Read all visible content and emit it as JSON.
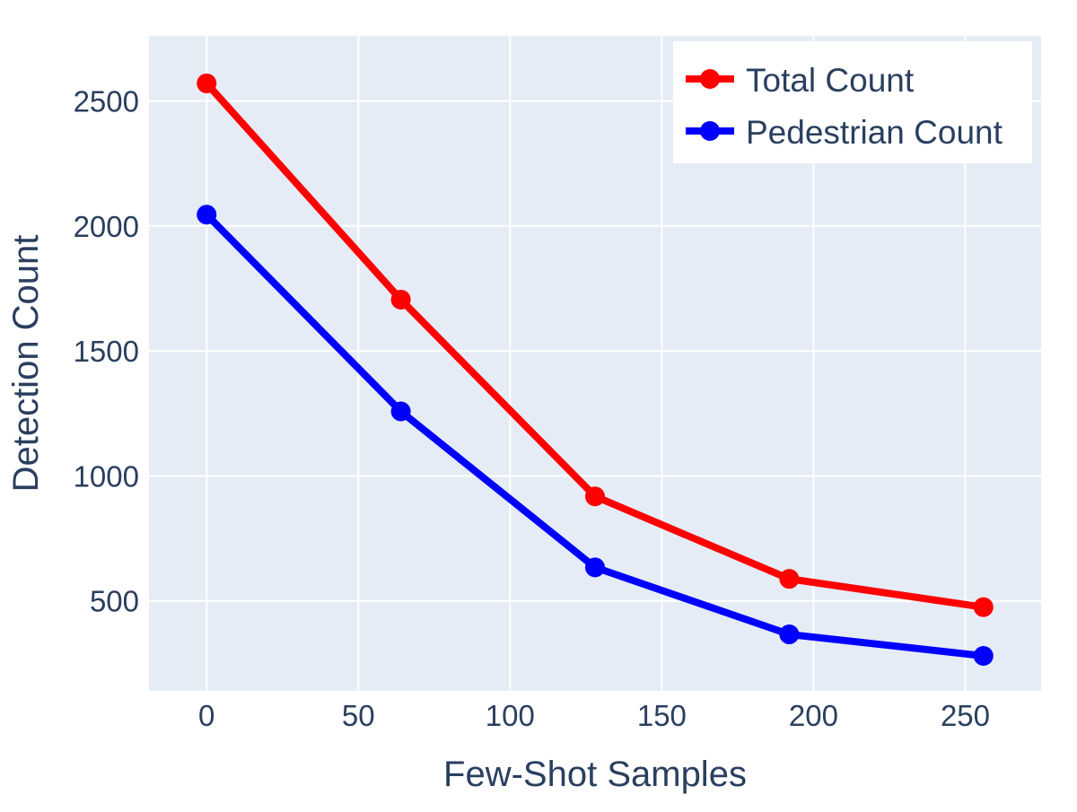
{
  "chart_data": {
    "type": "line",
    "title": "",
    "xlabel": "Few-Shot Samples",
    "ylabel": "Detection Count",
    "x": [
      0,
      64,
      128,
      192,
      256
    ],
    "xlim": [
      -19,
      275
    ],
    "ylim": [
      140,
      2760
    ],
    "xticks": [
      0,
      50,
      100,
      150,
      200,
      250
    ],
    "yticks": [
      500,
      1000,
      1500,
      2000,
      2500
    ],
    "grid": true,
    "legend_position": "top-right",
    "series": [
      {
        "name": "Total Count",
        "color": "#ff0000",
        "values": [
          2570,
          1705,
          918,
          588,
          475
        ]
      },
      {
        "name": "Pedestrian Count",
        "color": "#0000ff",
        "values": [
          2045,
          1258,
          634,
          366,
          280
        ]
      }
    ]
  },
  "colors": {
    "plot_bg": "#e5ecf6",
    "grid": "#ffffff",
    "text": "#2a3f5f"
  }
}
